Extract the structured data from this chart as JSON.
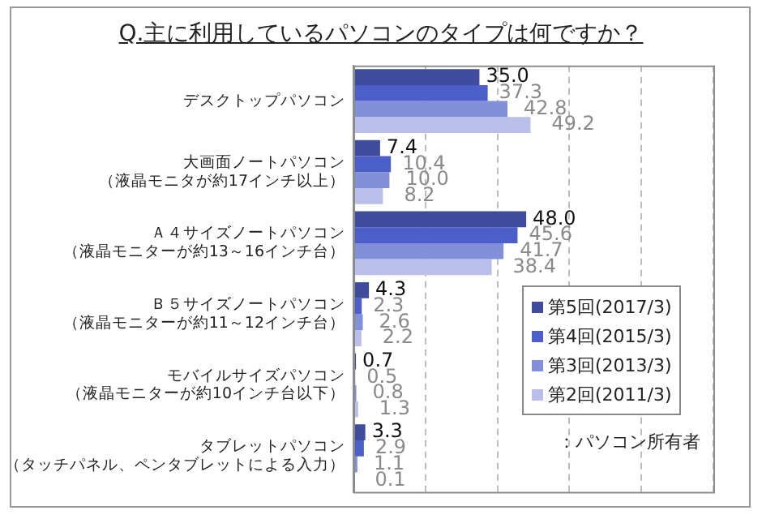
{
  "chart_data": {
    "type": "bar",
    "orientation": "horizontal",
    "title": "Q.主に利用しているパソコンのタイプは何ですか？",
    "categories": [
      "デスクトップパソコン",
      "大画面ノートパソコン（液晶モニタが約17インチ以上）",
      "Ａ４サイズノートパソコン（液晶モニターが約13～16インチ台）",
      "Ｂ５サイズノートパソコン（液晶モニターが約11～12インチ台）",
      "モバイルサイズパソコン（液晶モニターが約10インチ台以下）",
      "タブレットパソコン（タッチパネル、ペンタブレットによる入力）"
    ],
    "series": [
      {
        "name": "第5回(2017/3)",
        "color": "#3f4c9e",
        "values": [
          35.0,
          7.4,
          48.0,
          4.3,
          0.7,
          3.3
        ],
        "value_labels": [
          "35.0",
          "7.4",
          "48.0",
          "4.3",
          "0.7",
          "3.3"
        ]
      },
      {
        "name": "第4回(2015/3)",
        "color": "#4b5ec9",
        "values": [
          37.3,
          10.4,
          45.6,
          2.3,
          0.5,
          2.9
        ],
        "value_labels": [
          "37.3",
          "10.4",
          "45.6",
          "2.3",
          "0.5",
          "2.9"
        ]
      },
      {
        "name": "第3回(2013/3)",
        "color": "#8190d9",
        "values": [
          42.8,
          10.0,
          41.7,
          2.6,
          0.8,
          1.1
        ],
        "value_labels": [
          "42.8",
          "10.0",
          "41.7",
          "2.6",
          "0.8",
          "1.1"
        ]
      },
      {
        "name": "第2回(2011/3)",
        "color": "#b9bfe8",
        "values": [
          49.2,
          8.2,
          38.4,
          2.2,
          1.3,
          0.1
        ],
        "value_labels": [
          "49.2",
          "8.2",
          "38.4",
          "2.2",
          "1.3",
          "0.1"
        ]
      }
    ],
    "xlim": [
      0,
      100
    ],
    "xticks": [
      {
        "value": 0,
        "label": null
      },
      {
        "value": 20,
        "label": null
      },
      {
        "value": 40,
        "label": null
      },
      {
        "value": 60,
        "label": null
      },
      {
        "value": 80,
        "label": null
      },
      {
        "value": 100,
        "label": null
      }
    ],
    "grid": "x",
    "legend": "bottom right",
    "tick_labels": "y",
    "annotations": [
      "：パソコン所有者"
    ]
  }
}
